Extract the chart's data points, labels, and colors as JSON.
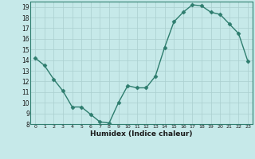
{
  "x": [
    0,
    1,
    2,
    3,
    4,
    5,
    6,
    7,
    8,
    9,
    10,
    11,
    12,
    13,
    14,
    15,
    16,
    17,
    18,
    19,
    20,
    21,
    22,
    23
  ],
  "y": [
    14.2,
    13.5,
    12.2,
    11.1,
    9.6,
    9.6,
    8.9,
    8.2,
    8.1,
    10.0,
    11.6,
    11.4,
    11.4,
    12.5,
    15.2,
    17.6,
    18.5,
    19.2,
    19.1,
    18.5,
    18.3,
    17.4,
    16.5,
    13.9
  ],
  "xlabel": "Humidex (Indice chaleur)",
  "bg_color": "#c6e9e9",
  "grid_color": "#aacfcf",
  "line_color": "#2e7d6e",
  "marker_color": "#2e7d6e",
  "xlim": [
    -0.5,
    23.5
  ],
  "ylim": [
    8,
    19.5
  ],
  "yticks": [
    8,
    9,
    10,
    11,
    12,
    13,
    14,
    15,
    16,
    17,
    18,
    19
  ],
  "xticks": [
    0,
    1,
    2,
    3,
    4,
    5,
    6,
    7,
    8,
    9,
    10,
    11,
    12,
    13,
    14,
    15,
    16,
    17,
    18,
    19,
    20,
    21,
    22,
    23
  ]
}
